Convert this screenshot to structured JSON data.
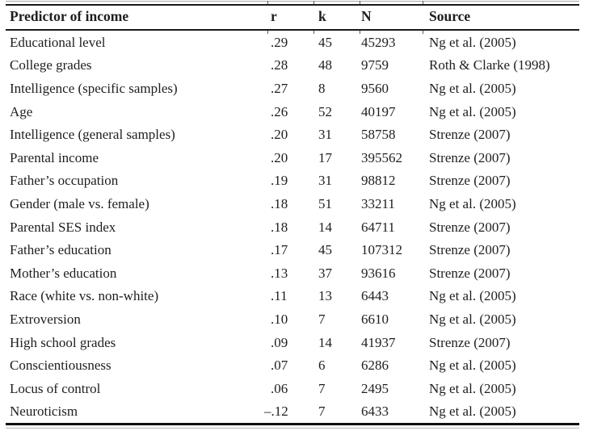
{
  "page": {
    "background": "#ffffff",
    "text_color": "#1e1e1e",
    "rule_color": "#1a1a1a"
  },
  "table": {
    "columns": [
      {
        "key": "predictor",
        "label": "Predictor of income"
      },
      {
        "key": "r",
        "label": "r"
      },
      {
        "key": "k",
        "label": "k"
      },
      {
        "key": "N",
        "label": "N"
      },
      {
        "key": "source",
        "label": "Source"
      }
    ],
    "rows": [
      [
        "Educational level",
        ".29",
        "45",
        "45293",
        "Ng et al. (2005)"
      ],
      [
        "College grades",
        ".28",
        "48",
        "9759",
        "Roth & Clarke (1998)"
      ],
      [
        "Intelligence (specific samples)",
        ".27",
        "8",
        "9560",
        "Ng et al. (2005)"
      ],
      [
        "Age",
        ".26",
        "52",
        "40197",
        "Ng et al. (2005)"
      ],
      [
        "Intelligence (general samples)",
        ".20",
        "31",
        "58758",
        "Strenze (2007)"
      ],
      [
        "Parental income",
        ".20",
        "17",
        "395562",
        "Strenze (2007)"
      ],
      [
        "Father’s occupation",
        ".19",
        "31",
        "98812",
        "Strenze (2007)"
      ],
      [
        "Gender (male vs. female)",
        ".18",
        "51",
        "33211",
        "Ng et al. (2005)"
      ],
      [
        "Parental SES index",
        ".18",
        "14",
        "64711",
        "Strenze (2007)"
      ],
      [
        "Father’s education",
        ".17",
        "45",
        "107312",
        "Strenze (2007)"
      ],
      [
        "Mother’s education",
        ".13",
        "37",
        "93616",
        "Strenze (2007)"
      ],
      [
        "Race (white vs. non-white)",
        ".11",
        "13",
        "6443",
        "Ng et al. (2005)"
      ],
      [
        "Extroversion",
        ".10",
        "7",
        "6610",
        "Ng et al. (2005)"
      ],
      [
        "High school grades",
        ".09",
        "14",
        "41937",
        "Strenze (2007)"
      ],
      [
        "Conscientiousness",
        ".07",
        "6",
        "6286",
        "Ng et al. (2005)"
      ],
      [
        "Locus of control",
        ".06",
        "7",
        "2495",
        "Ng et al. (2005)"
      ],
      [
        "Neuroticism",
        "–.12",
        "7",
        "6433",
        "Ng et al. (2005)"
      ]
    ]
  }
}
